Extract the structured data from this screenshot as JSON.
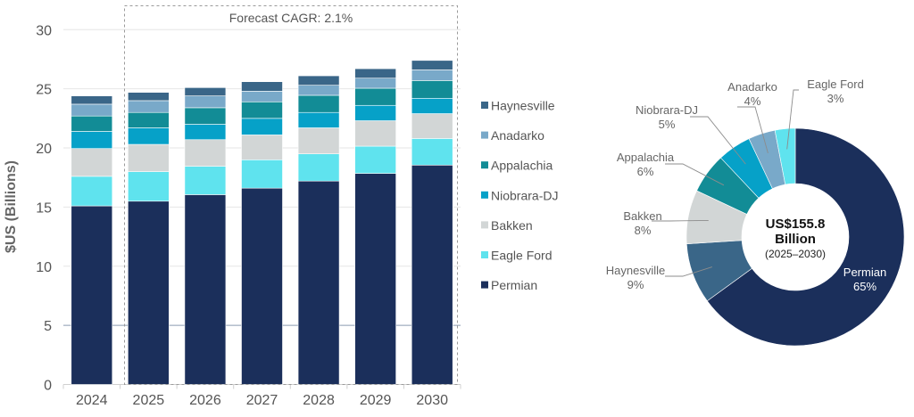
{
  "chart_data": [
    {
      "type": "bar",
      "stacked": true,
      "title": "",
      "annotation": "Forecast CAGR: 2.1%",
      "xlabel": "",
      "ylabel": "$US (Billions)",
      "ylim": [
        0,
        30
      ],
      "yticks": [
        "0",
        "5",
        "10",
        "15",
        "20",
        "25",
        "30"
      ],
      "categories": [
        "2024",
        "2025",
        "2026",
        "2027",
        "2028",
        "2029",
        "2030"
      ],
      "grid": true,
      "legend_position": "right",
      "series": [
        {
          "name": "Permian",
          "color": "#1b2f5b",
          "values": [
            15.1,
            15.5,
            16.05,
            16.6,
            17.2,
            17.85,
            18.55
          ]
        },
        {
          "name": "Eagle Ford",
          "color": "#5fe3ee",
          "values": [
            2.5,
            2.5,
            2.4,
            2.4,
            2.3,
            2.3,
            2.25
          ]
        },
        {
          "name": "Bakken",
          "color": "#d2d6d6",
          "values": [
            2.35,
            2.3,
            2.25,
            2.1,
            2.2,
            2.15,
            2.1
          ]
        },
        {
          "name": "Niobrara-DJ",
          "color": "#06a1c8",
          "values": [
            1.45,
            1.4,
            1.3,
            1.4,
            1.3,
            1.3,
            1.3
          ]
        },
        {
          "name": "Appalachia",
          "color": "#128c96",
          "values": [
            1.3,
            1.3,
            1.4,
            1.4,
            1.45,
            1.45,
            1.5
          ]
        },
        {
          "name": "Anadarko",
          "color": "#79a9c9",
          "values": [
            1.0,
            1.0,
            1.0,
            0.9,
            0.85,
            0.85,
            0.9
          ]
        },
        {
          "name": "Haynesville",
          "color": "#3a6688",
          "values": [
            0.7,
            0.7,
            0.7,
            0.8,
            0.8,
            0.8,
            0.8
          ]
        }
      ],
      "legend_order": [
        "Haynesville",
        "Anadarko",
        "Appalachia",
        "Niobrara-DJ",
        "Bakken",
        "Eagle Ford",
        "Permian"
      ],
      "forecast_years": [
        "2025",
        "2030"
      ]
    },
    {
      "type": "pie",
      "donut": true,
      "center_label": {
        "line1": "US$155.8",
        "line2": "Billion",
        "line3": "(2025–2030)"
      },
      "slices": [
        {
          "name": "Permian",
          "value": 65,
          "label": "65%",
          "color": "#1b2f5b"
        },
        {
          "name": "Haynesville",
          "value": 9,
          "label": "9%",
          "color": "#3a6688"
        },
        {
          "name": "Bakken",
          "value": 8,
          "label": "8%",
          "color": "#d2d6d6"
        },
        {
          "name": "Appalachia",
          "value": 6,
          "label": "6%",
          "color": "#128c96"
        },
        {
          "name": "Niobrara-DJ",
          "value": 5,
          "label": "5%",
          "color": "#06a1c8"
        },
        {
          "name": "Anadarko",
          "value": 4,
          "label": "4%",
          "color": "#79a9c9"
        },
        {
          "name": "Eagle Ford",
          "value": 3,
          "label": "3%",
          "color": "#5fe3ee"
        }
      ]
    }
  ]
}
